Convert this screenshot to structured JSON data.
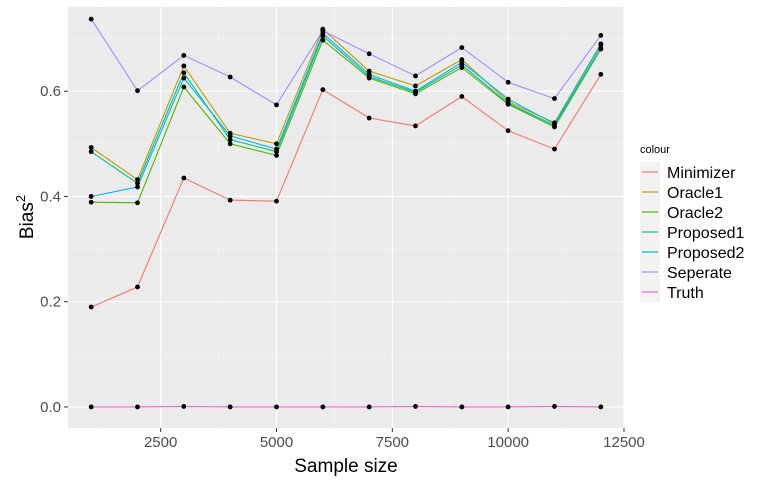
{
  "chart_data": {
    "type": "line",
    "xlabel": "Sample size",
    "ylabel": "Bias",
    "ylabel_superscript": "2",
    "xlim": [
      500,
      12500
    ],
    "ylim": [
      -0.04,
      0.76
    ],
    "x_ticks": [
      2500,
      5000,
      7500,
      10000,
      12500
    ],
    "x_tick_labels": [
      "2500",
      "5000",
      "7500",
      "10000",
      "12500"
    ],
    "y_ticks": [
      0.0,
      0.2,
      0.4,
      0.6
    ],
    "y_tick_labels": [
      "0.0",
      "0.2",
      "0.4",
      "0.6"
    ],
    "grid": true,
    "legend_title": "colour",
    "legend_position": "right",
    "x": [
      1000,
      2000,
      3000,
      4000,
      5000,
      6000,
      7000,
      8000,
      9000,
      10000,
      11000,
      12000
    ],
    "series": [
      {
        "name": "Minimizer",
        "color": "#F8766D",
        "values": [
          0.19,
          0.228,
          0.435,
          0.393,
          0.391,
          0.603,
          0.549,
          0.534,
          0.59,
          0.525,
          0.49,
          0.632
        ]
      },
      {
        "name": "Oracle1",
        "color": "#C49A00",
        "values": [
          0.493,
          0.432,
          0.648,
          0.52,
          0.5,
          0.718,
          0.638,
          0.61,
          0.66,
          0.58,
          0.54,
          0.69
        ]
      },
      {
        "name": "Oracle2",
        "color": "#53B400",
        "values": [
          0.389,
          0.388,
          0.608,
          0.5,
          0.478,
          0.697,
          0.625,
          0.595,
          0.645,
          0.575,
          0.532,
          0.68
        ]
      },
      {
        "name": "Proposed1",
        "color": "#00C094",
        "values": [
          0.485,
          0.425,
          0.635,
          0.508,
          0.485,
          0.705,
          0.628,
          0.598,
          0.65,
          0.577,
          0.535,
          0.682
        ]
      },
      {
        "name": "Proposed2",
        "color": "#00B6EB",
        "values": [
          0.4,
          0.418,
          0.625,
          0.515,
          0.49,
          0.71,
          0.632,
          0.6,
          0.655,
          0.585,
          0.538,
          0.688
        ]
      },
      {
        "name": "Seperate",
        "color": "#A58AFF",
        "values": [
          0.737,
          0.601,
          0.668,
          0.627,
          0.574,
          0.715,
          0.671,
          0.629,
          0.683,
          0.617,
          0.586,
          0.706
        ]
      },
      {
        "name": "Truth",
        "color": "#FB61D7",
        "values": [
          0.0,
          0.0,
          0.001,
          0.0,
          0.0,
          0.0,
          0.0,
          0.001,
          0.0,
          0.0,
          0.001,
          0.0
        ]
      }
    ]
  }
}
